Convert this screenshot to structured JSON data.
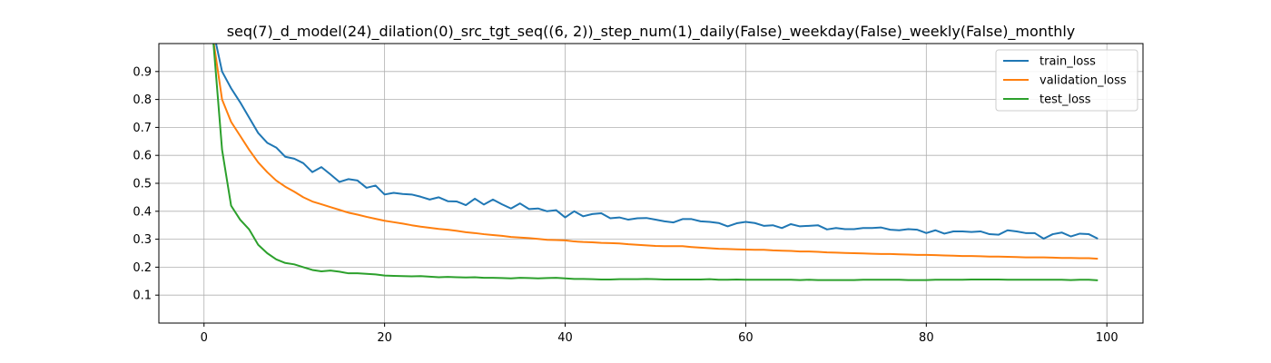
{
  "chart_data": {
    "type": "line",
    "title": "seq(7)_d_model(24)_dilation(0)_src_tgt_seq((6, 2))_step_num(1)_daily(False)_weekday(False)_weekly(False)_monthly",
    "xlabel": "",
    "ylabel": "",
    "xlim": [
      -5,
      104
    ],
    "ylim": [
      0.0,
      1.0
    ],
    "x_ticks": [
      0,
      20,
      40,
      60,
      80,
      100
    ],
    "y_ticks": [
      0.1,
      0.2,
      0.3,
      0.4,
      0.5,
      0.6,
      0.7,
      0.8,
      0.9
    ],
    "grid": true,
    "legend_position": "top-right",
    "x": [
      1,
      2,
      3,
      4,
      5,
      6,
      7,
      8,
      9,
      10,
      11,
      12,
      13,
      14,
      15,
      16,
      17,
      18,
      19,
      20,
      21,
      22,
      23,
      24,
      25,
      26,
      27,
      28,
      29,
      30,
      31,
      32,
      33,
      34,
      35,
      36,
      37,
      38,
      39,
      40,
      41,
      42,
      43,
      44,
      45,
      46,
      47,
      48,
      49,
      50,
      51,
      52,
      53,
      54,
      55,
      56,
      57,
      58,
      59,
      60,
      61,
      62,
      63,
      64,
      65,
      66,
      67,
      68,
      69,
      70,
      71,
      72,
      73,
      74,
      75,
      76,
      77,
      78,
      79,
      80,
      81,
      82,
      83,
      84,
      85,
      86,
      87,
      88,
      89,
      90,
      91,
      92,
      93,
      94,
      95,
      96,
      97,
      98,
      99
    ],
    "series": [
      {
        "name": "train_loss",
        "color": "#1f77b4",
        "values": [
          1.05,
          0.9,
          0.84,
          0.79,
          0.735,
          0.68,
          0.645,
          0.628,
          0.595,
          0.588,
          0.572,
          0.54,
          0.558,
          0.532,
          0.505,
          0.515,
          0.51,
          0.484,
          0.492,
          0.46,
          0.466,
          0.462,
          0.46,
          0.452,
          0.442,
          0.45,
          0.436,
          0.435,
          0.422,
          0.445,
          0.424,
          0.442,
          0.425,
          0.41,
          0.428,
          0.408,
          0.41,
          0.4,
          0.404,
          0.378,
          0.4,
          0.382,
          0.39,
          0.393,
          0.375,
          0.378,
          0.37,
          0.375,
          0.376,
          0.37,
          0.364,
          0.36,
          0.372,
          0.372,
          0.364,
          0.362,
          0.358,
          0.346,
          0.357,
          0.362,
          0.358,
          0.348,
          0.35,
          0.34,
          0.354,
          0.346,
          0.348,
          0.35,
          0.335,
          0.34,
          0.336,
          0.336,
          0.34,
          0.34,
          0.342,
          0.334,
          0.332,
          0.336,
          0.334,
          0.322,
          0.332,
          0.32,
          0.328,
          0.328,
          0.326,
          0.328,
          0.318,
          0.316,
          0.332,
          0.328,
          0.322,
          0.322,
          0.302,
          0.318,
          0.324,
          0.31,
          0.32,
          0.318,
          0.302
        ]
      },
      {
        "name": "validation_loss",
        "color": "#ff7f0e",
        "values": [
          1.02,
          0.8,
          0.72,
          0.67,
          0.62,
          0.575,
          0.54,
          0.51,
          0.488,
          0.47,
          0.45,
          0.435,
          0.425,
          0.415,
          0.405,
          0.395,
          0.388,
          0.38,
          0.373,
          0.366,
          0.361,
          0.356,
          0.35,
          0.345,
          0.341,
          0.337,
          0.334,
          0.33,
          0.325,
          0.322,
          0.318,
          0.315,
          0.312,
          0.308,
          0.306,
          0.304,
          0.301,
          0.298,
          0.297,
          0.296,
          0.292,
          0.29,
          0.289,
          0.287,
          0.286,
          0.285,
          0.282,
          0.28,
          0.278,
          0.276,
          0.275,
          0.275,
          0.275,
          0.272,
          0.27,
          0.268,
          0.266,
          0.265,
          0.264,
          0.263,
          0.262,
          0.262,
          0.26,
          0.259,
          0.258,
          0.256,
          0.256,
          0.255,
          0.253,
          0.252,
          0.251,
          0.25,
          0.249,
          0.248,
          0.247,
          0.247,
          0.246,
          0.245,
          0.244,
          0.244,
          0.243,
          0.242,
          0.241,
          0.24,
          0.24,
          0.239,
          0.238,
          0.238,
          0.237,
          0.236,
          0.235,
          0.235,
          0.235,
          0.234,
          0.233,
          0.233,
          0.232,
          0.232,
          0.23
        ]
      },
      {
        "name": "test_loss",
        "color": "#2ca02c",
        "values": [
          1.02,
          0.62,
          0.42,
          0.37,
          0.335,
          0.28,
          0.25,
          0.228,
          0.215,
          0.21,
          0.2,
          0.19,
          0.185,
          0.188,
          0.184,
          0.178,
          0.178,
          0.176,
          0.174,
          0.17,
          0.169,
          0.168,
          0.167,
          0.168,
          0.166,
          0.164,
          0.165,
          0.164,
          0.163,
          0.164,
          0.162,
          0.162,
          0.161,
          0.16,
          0.162,
          0.161,
          0.16,
          0.161,
          0.162,
          0.16,
          0.158,
          0.158,
          0.157,
          0.156,
          0.156,
          0.157,
          0.157,
          0.157,
          0.158,
          0.157,
          0.156,
          0.156,
          0.156,
          0.156,
          0.156,
          0.157,
          0.155,
          0.155,
          0.156,
          0.155,
          0.155,
          0.155,
          0.155,
          0.155,
          0.155,
          0.154,
          0.155,
          0.154,
          0.154,
          0.154,
          0.154,
          0.154,
          0.155,
          0.155,
          0.155,
          0.155,
          0.155,
          0.154,
          0.154,
          0.154,
          0.155,
          0.155,
          0.155,
          0.155,
          0.156,
          0.156,
          0.156,
          0.156,
          0.155,
          0.155,
          0.155,
          0.155,
          0.155,
          0.155,
          0.155,
          0.154,
          0.155,
          0.155,
          0.153
        ]
      }
    ]
  }
}
